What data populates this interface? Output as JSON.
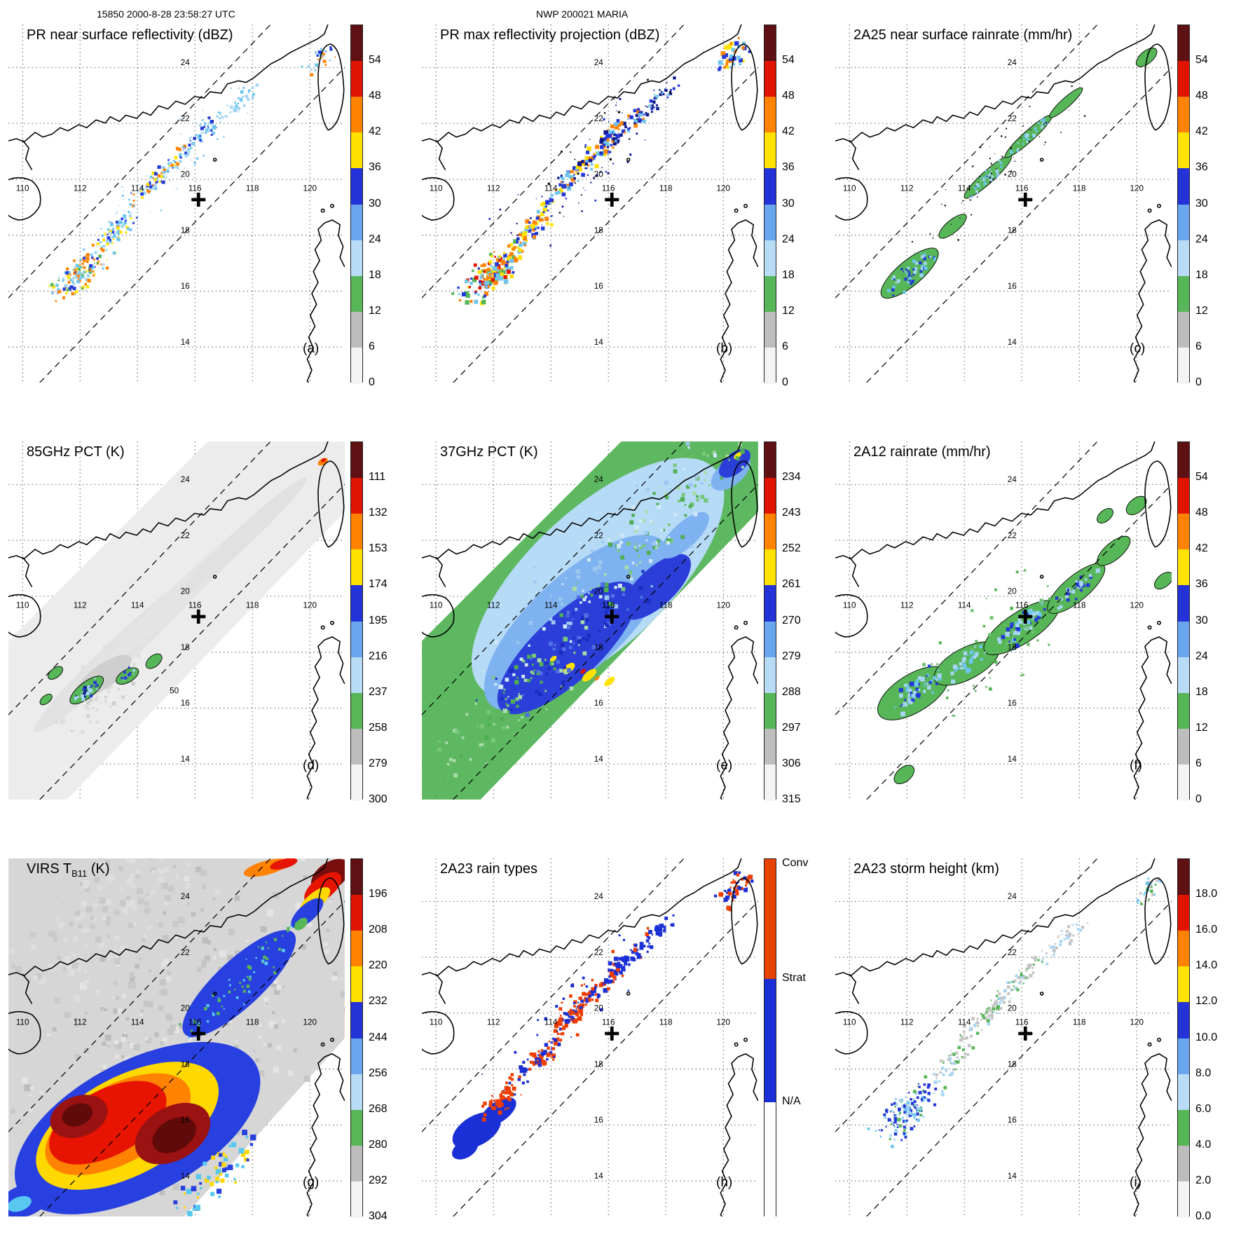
{
  "header": {
    "left": "15850 2000-8-28 23:58:27 UTC",
    "center": "NWP 200021 MARIA"
  },
  "map": {
    "lon_labels": [
      "110",
      "112",
      "114",
      "116",
      "118",
      "120"
    ],
    "lat_labels": [
      "24",
      "22",
      "20",
      "18",
      "16",
      "14"
    ]
  },
  "colors": {
    "dbz_scale_top_to_bottom": [
      "#5f1012",
      "#e01400",
      "#ff8200",
      "#ffe200",
      "#2433d8",
      "#6aa6ee",
      "#b8dcf6",
      "#57b657",
      "#bdbdbd",
      "#f4f4f4"
    ],
    "convective": "#e84300",
    "stratiform": "#1b2fd6"
  },
  "panels": [
    {
      "letter": "(a)",
      "title_main": "PR near surface reflectivity (dBZ)",
      "title_sub": "",
      "title_tail": "",
      "colorbar": {
        "type": "numeric",
        "ticks": [
          "54",
          "48",
          "42",
          "36",
          "30",
          "24",
          "18",
          "12",
          "6",
          "0"
        ],
        "colors": [
          "#5f1012",
          "#e01400",
          "#ff8200",
          "#ffe200",
          "#2433d8",
          "#6aa6ee",
          "#b8dcf6",
          "#57b657",
          "#bdbdbd",
          "#f4f4f4"
        ]
      }
    },
    {
      "letter": "(b)",
      "title_main": "PR max reflectivity projection (dBZ)",
      "title_sub": "",
      "title_tail": "",
      "colorbar": {
        "type": "numeric",
        "ticks": [
          "54",
          "48",
          "42",
          "36",
          "30",
          "24",
          "18",
          "12",
          "6",
          "0"
        ],
        "colors": [
          "#5f1012",
          "#e01400",
          "#ff8200",
          "#ffe200",
          "#2433d8",
          "#6aa6ee",
          "#b8dcf6",
          "#57b657",
          "#bdbdbd",
          "#f4f4f4"
        ]
      }
    },
    {
      "letter": "(c)",
      "title_main": "2A25 near surface rainrate (mm/hr)",
      "title_sub": "",
      "title_tail": "",
      "colorbar": {
        "type": "numeric",
        "ticks": [
          "54",
          "48",
          "42",
          "36",
          "30",
          "24",
          "18",
          "12",
          "6",
          "0"
        ],
        "colors": [
          "#5f1012",
          "#e01400",
          "#ff8200",
          "#ffe200",
          "#2433d8",
          "#6aa6ee",
          "#b8dcf6",
          "#57b657",
          "#bdbdbd",
          "#f4f4f4"
        ]
      }
    },
    {
      "letter": "(d)",
      "title_main": "85GHz PCT (K)",
      "title_sub": "",
      "title_tail": "",
      "contour_label": "50",
      "colorbar": {
        "type": "numeric",
        "ticks": [
          "111",
          "132",
          "153",
          "174",
          "195",
          "216",
          "237",
          "258",
          "279",
          "300"
        ],
        "colors": [
          "#5f1012",
          "#e01400",
          "#ff8200",
          "#ffe200",
          "#2433d8",
          "#6aa6ee",
          "#b8dcf6",
          "#57b657",
          "#bdbdbd",
          "#f4f4f4"
        ]
      }
    },
    {
      "letter": "(e)",
      "title_main": "37GHz PCT (K)",
      "title_sub": "",
      "title_tail": "",
      "colorbar": {
        "type": "numeric",
        "ticks": [
          "234",
          "243",
          "252",
          "261",
          "270",
          "279",
          "288",
          "297",
          "306",
          "315"
        ],
        "colors": [
          "#5f1012",
          "#e01400",
          "#ff8200",
          "#ffe200",
          "#2433d8",
          "#6aa6ee",
          "#b8dcf6",
          "#57b657",
          "#bdbdbd",
          "#f4f4f4"
        ]
      }
    },
    {
      "letter": "(f)",
      "title_main": "2A12 rainrate (mm/hr)",
      "title_sub": "",
      "title_tail": "",
      "colorbar": {
        "type": "numeric",
        "ticks": [
          "54",
          "48",
          "42",
          "36",
          "30",
          "24",
          "18",
          "12",
          "6",
          "0"
        ],
        "colors": [
          "#5f1012",
          "#e01400",
          "#ff8200",
          "#ffe200",
          "#2433d8",
          "#6aa6ee",
          "#b8dcf6",
          "#57b657",
          "#bdbdbd",
          "#f4f4f4"
        ]
      }
    },
    {
      "letter": "(g)",
      "title_main": "VIRS T",
      "title_sub": "B11",
      "title_tail": " (K)",
      "colorbar": {
        "type": "numeric",
        "ticks": [
          "196",
          "208",
          "220",
          "232",
          "244",
          "256",
          "268",
          "280",
          "292",
          "304"
        ],
        "colors": [
          "#5f1012",
          "#e01400",
          "#ff8200",
          "#ffe200",
          "#2433d8",
          "#6aa6ee",
          "#b8dcf6",
          "#57b657",
          "#bdbdbd",
          "#f4f4f4"
        ]
      }
    },
    {
      "letter": "(h)",
      "title_main": "2A23 rain types",
      "title_sub": "",
      "title_tail": "",
      "colorbar": {
        "type": "categorical",
        "segments": [
          {
            "label": "Conv",
            "color": "#e84300",
            "frac": 0.335
          },
          {
            "label": "Strat",
            "color": "#1b2fd6",
            "frac": 0.345
          },
          {
            "label": "N/A",
            "color": "#ffffff",
            "frac": 0.32
          }
        ]
      }
    },
    {
      "letter": "(i)",
      "title_main": "2A23 storm height (km)",
      "title_sub": "",
      "title_tail": "",
      "colorbar": {
        "type": "numeric",
        "ticks": [
          "18.0",
          "16.0",
          "14.0",
          "12.0",
          "10.0",
          "8.0",
          "6.0",
          "4.0",
          "2.0",
          "0.0"
        ],
        "colors": [
          "#5f1012",
          "#e01400",
          "#ff8200",
          "#ffe200",
          "#2433d8",
          "#6aa6ee",
          "#b8dcf6",
          "#57b657",
          "#bdbdbd",
          "#f4f4f4"
        ]
      }
    }
  ]
}
